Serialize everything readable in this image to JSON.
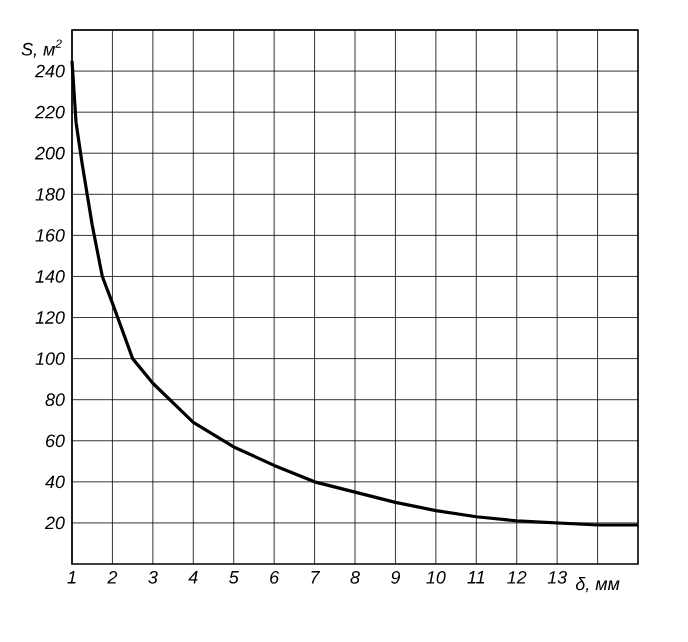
{
  "chart_data": {
    "type": "line",
    "xlabel": "δ, мм",
    "ylabel": "S, м$^{2}$",
    "x": [
      1,
      1.1,
      1.25,
      1.5,
      1.75,
      2,
      2.5,
      3,
      4,
      5,
      6,
      7,
      8,
      9,
      10,
      11,
      12,
      13,
      14,
      15
    ],
    "values": [
      245,
      215,
      195,
      165,
      140,
      127,
      100,
      88,
      69,
      57,
      48,
      40,
      35,
      30,
      26,
      23,
      21,
      20,
      19,
      19
    ],
    "color": "#000000",
    "xlim": [
      1,
      15
    ],
    "ylim": [
      0,
      260
    ],
    "xticks": [
      1,
      2,
      3,
      4,
      5,
      6,
      7,
      8,
      9,
      10,
      11,
      12,
      13,
      {
        "value": 14,
        "label": null
      }
    ],
    "yticks": [
      20,
      40,
      60,
      80,
      100,
      120,
      140,
      160,
      180,
      200,
      220,
      240,
      {
        "value": 260,
        "label": null
      }
    ],
    "grid": true,
    "marker": "none",
    "line_style": "solid"
  }
}
